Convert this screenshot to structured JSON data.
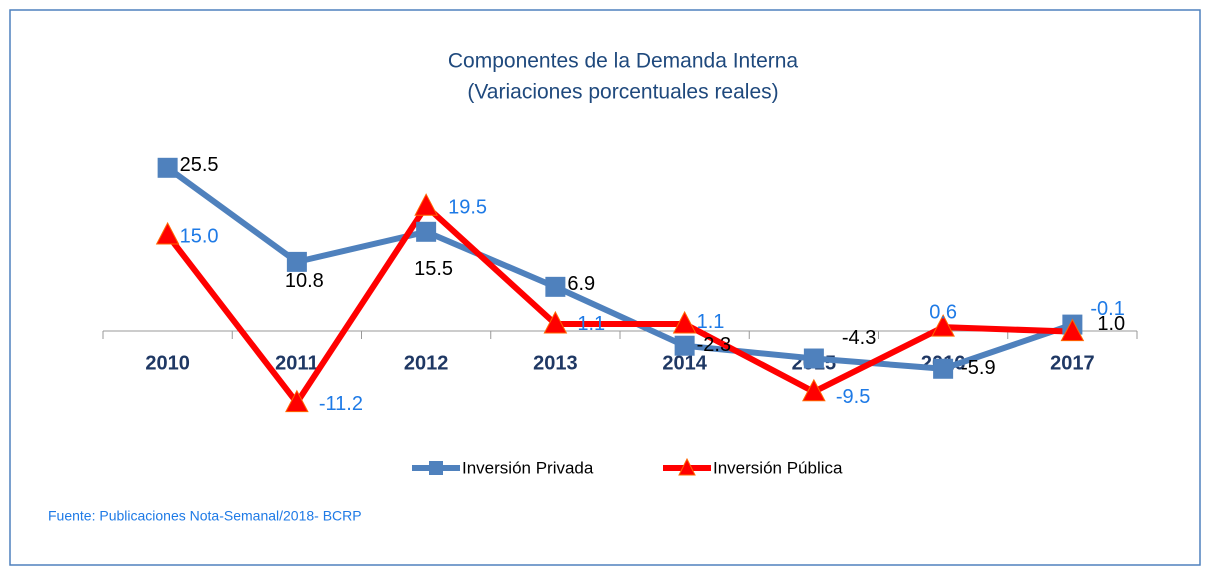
{
  "chart_data": {
    "type": "line",
    "title": "Componentes de la Demanda Interna",
    "subtitle": "(Variaciones porcentuales reales)",
    "source": "Fuente: Publicaciones Nota-Semanal/2018- BCRP",
    "categories": [
      "2010",
      "2011",
      "2012",
      "2013",
      "2014",
      "2015",
      "2016",
      "2017"
    ],
    "ylim": [
      -15,
      30
    ],
    "legend": "bottom",
    "series": [
      {
        "name": "Inversión Privada",
        "color": "#4f81bd",
        "marker": "square",
        "values": [
          25.5,
          10.8,
          15.5,
          6.9,
          -2.3,
          -4.3,
          -5.9,
          1.0
        ],
        "value_labels": [
          "25.5",
          "10.8",
          "15.5",
          "6.9",
          "-2.3",
          "-4.3",
          "-5.9",
          "1.0"
        ]
      },
      {
        "name": "Inversión Pública",
        "color": "#ff0000",
        "marker": "triangle",
        "values": [
          15.0,
          -11.2,
          19.5,
          1.1,
          1.1,
          -9.5,
          0.6,
          -0.1
        ],
        "value_labels": [
          "15.0",
          "-11.2",
          "19.5",
          "1.1",
          "1.1",
          "-9.5",
          "0.6",
          "-0.1"
        ]
      }
    ]
  }
}
